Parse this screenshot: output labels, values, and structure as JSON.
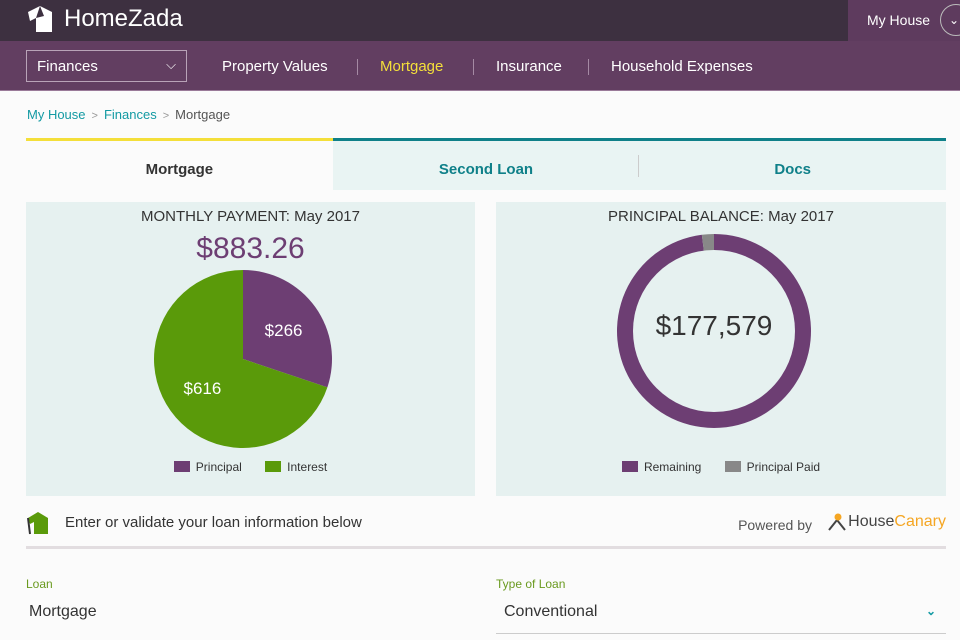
{
  "header": {
    "brand": "HomeZada",
    "account_label": "My House"
  },
  "nav": {
    "section_select": "Finances",
    "items": [
      {
        "label": "Property Values",
        "active": false
      },
      {
        "label": "Mortgage",
        "active": true
      },
      {
        "label": "Insurance",
        "active": false
      },
      {
        "label": "Household Expenses",
        "active": false
      }
    ]
  },
  "breadcrumb": [
    "My House",
    "Finances",
    "Mortgage"
  ],
  "tabs": [
    {
      "label": "Mortgage"
    },
    {
      "label": "Second Loan"
    },
    {
      "label": "Docs"
    }
  ],
  "monthly_payment": {
    "title": "MONTHLY PAYMENT: May 2017",
    "amount": "$883.26"
  },
  "principal_balance": {
    "title": "PRINCIPAL BALANCE: May 2017",
    "amount": "$177,579"
  },
  "chart_data": [
    {
      "type": "pie",
      "categories": [
        "Principal",
        "Interest"
      ],
      "values": [
        266,
        616
      ],
      "labels": [
        "$266",
        "$616"
      ],
      "colors": [
        "#6d3e73",
        "#5a9a0a"
      ],
      "legend": "bottom"
    },
    {
      "type": "pie",
      "variant": "donut",
      "categories": [
        "Remaining",
        "Principal Paid"
      ],
      "values": [
        0.98,
        0.02
      ],
      "colors": [
        "#6d3e73",
        "#888888"
      ],
      "legend": "bottom"
    }
  ],
  "info": {
    "text": "Enter or validate your loan information below",
    "powered_by": "Powered by",
    "partner_a": "House",
    "partner_b": "Canary"
  },
  "form": {
    "loan_label": "Loan",
    "loan_value": "Mortgage",
    "type_label": "Type of Loan",
    "type_value": "Conventional"
  }
}
